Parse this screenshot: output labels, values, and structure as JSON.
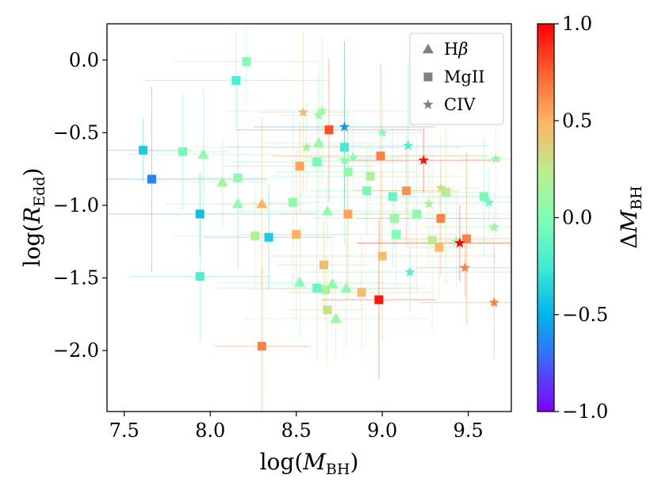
{
  "chart_data": {
    "type": "scatter",
    "xlabel": "log(M_BH)",
    "ylabel": "log(R_Edd)",
    "colorbar_label": "ΔM_BH",
    "xlim": [
      7.4,
      9.75
    ],
    "ylim": [
      -2.42,
      0.25
    ],
    "xticks": [
      7.5,
      8.0,
      8.5,
      9.0,
      9.5
    ],
    "xtick_labels": [
      "7.5",
      "8.0",
      "8.5",
      "9.0",
      "9.5"
    ],
    "yticks": [
      0.0,
      -0.5,
      -1.0,
      -1.5,
      -2.0
    ],
    "ytick_labels": [
      "0.0",
      "−0.5",
      "−1.0",
      "−1.5",
      "−2.0"
    ],
    "color_range": [
      -1.0,
      1.0
    ],
    "colorbar_ticks": [
      1.0,
      0.5,
      0.0,
      -0.5,
      -1.0
    ],
    "colorbar_tick_labels": [
      "1.0",
      "0.5",
      "0.0",
      "−0.5",
      "−1.0"
    ],
    "colormap": "rainbow",
    "grid": false,
    "legend": {
      "position": "top-right",
      "entries": [
        {
          "marker": "triangle",
          "label_main": "H",
          "label_sub": "β"
        },
        {
          "marker": "square",
          "label_main": "MgII",
          "label_sub": ""
        },
        {
          "marker": "star",
          "label_main": "CIV",
          "label_sub": ""
        }
      ]
    },
    "series": [
      {
        "marker": "triangle",
        "points": [
          {
            "x": 7.96,
            "y": -0.65,
            "c": 0.05
          },
          {
            "x": 8.07,
            "y": -0.84,
            "c": 0.15
          },
          {
            "x": 8.16,
            "y": -0.99,
            "c": 0.05
          },
          {
            "x": 8.3,
            "y": -0.99,
            "c": 0.5
          },
          {
            "x": 8.52,
            "y": -1.53,
            "c": 0.0
          },
          {
            "x": 8.63,
            "y": -0.57,
            "c": 0.1
          },
          {
            "x": 8.68,
            "y": -1.04,
            "c": 0.05
          },
          {
            "x": 8.71,
            "y": -1.54,
            "c": 0.05
          },
          {
            "x": 8.73,
            "y": -1.78,
            "c": 0.1
          },
          {
            "x": 8.79,
            "y": -1.57,
            "c": 0.05
          }
        ]
      },
      {
        "marker": "square",
        "points": [
          {
            "x": 7.61,
            "y": -0.62,
            "c": -0.4
          },
          {
            "x": 7.66,
            "y": -0.82,
            "c": -0.65
          },
          {
            "x": 7.84,
            "y": -0.63,
            "c": -0.05
          },
          {
            "x": 7.94,
            "y": -1.06,
            "c": -0.45
          },
          {
            "x": 7.94,
            "y": -1.49,
            "c": -0.2
          },
          {
            "x": 8.15,
            "y": -0.14,
            "c": -0.2
          },
          {
            "x": 8.16,
            "y": -0.81,
            "c": 0.05
          },
          {
            "x": 8.21,
            "y": -0.01,
            "c": 0.0
          },
          {
            "x": 8.26,
            "y": -1.21,
            "c": 0.2
          },
          {
            "x": 8.3,
            "y": -1.97,
            "c": 0.65
          },
          {
            "x": 8.34,
            "y": -1.22,
            "c": -0.4
          },
          {
            "x": 8.48,
            "y": -0.98,
            "c": 0.05
          },
          {
            "x": 8.5,
            "y": -1.2,
            "c": 0.5
          },
          {
            "x": 8.52,
            "y": -0.73,
            "c": 0.55
          },
          {
            "x": 8.62,
            "y": -0.7,
            "c": -0.05
          },
          {
            "x": 8.62,
            "y": -1.57,
            "c": -0.1
          },
          {
            "x": 8.66,
            "y": -1.41,
            "c": 0.45
          },
          {
            "x": 8.67,
            "y": -1.58,
            "c": 0.15
          },
          {
            "x": 8.68,
            "y": -1.72,
            "c": 0.3
          },
          {
            "x": 8.69,
            "y": -0.48,
            "c": 0.8
          },
          {
            "x": 8.78,
            "y": -0.6,
            "c": -0.25
          },
          {
            "x": 8.8,
            "y": -0.77,
            "c": 0.05
          },
          {
            "x": 8.8,
            "y": -1.06,
            "c": 0.55
          },
          {
            "x": 8.88,
            "y": -1.6,
            "c": 0.45
          },
          {
            "x": 8.91,
            "y": -0.9,
            "c": -0.05
          },
          {
            "x": 8.93,
            "y": -0.8,
            "c": 0.2
          },
          {
            "x": 8.98,
            "y": -1.65,
            "c": 0.95
          },
          {
            "x": 8.99,
            "y": -0.66,
            "c": 0.65
          },
          {
            "x": 9.0,
            "y": -1.35,
            "c": 0.45
          },
          {
            "x": 9.06,
            "y": -0.94,
            "c": -0.1
          },
          {
            "x": 9.07,
            "y": -1.09,
            "c": 0.1
          },
          {
            "x": 9.08,
            "y": -1.2,
            "c": 0.0
          },
          {
            "x": 9.14,
            "y": -0.9,
            "c": 0.6
          },
          {
            "x": 9.2,
            "y": -1.06,
            "c": 0.05
          },
          {
            "x": 9.29,
            "y": -1.24,
            "c": 0.25
          },
          {
            "x": 9.33,
            "y": -1.29,
            "c": 0.45
          },
          {
            "x": 9.34,
            "y": -1.09,
            "c": 0.65
          },
          {
            "x": 9.37,
            "y": -0.91,
            "c": 0.2
          },
          {
            "x": 9.49,
            "y": -1.23,
            "c": 0.65
          },
          {
            "x": 9.59,
            "y": -0.94,
            "c": -0.05
          }
        ]
      },
      {
        "marker": "star",
        "points": [
          {
            "x": 8.54,
            "y": -0.36,
            "c": 0.45
          },
          {
            "x": 8.56,
            "y": -0.6,
            "c": 0.15
          },
          {
            "x": 8.63,
            "y": -0.38,
            "c": 0.1
          },
          {
            "x": 8.65,
            "y": -0.35,
            "c": 0.1
          },
          {
            "x": 8.78,
            "y": -0.46,
            "c": -0.6
          },
          {
            "x": 8.78,
            "y": -0.69,
            "c": 0.0
          },
          {
            "x": 8.83,
            "y": -0.67,
            "c": 0.05
          },
          {
            "x": 9.0,
            "y": -0.5,
            "c": 0.05
          },
          {
            "x": 9.15,
            "y": -0.59,
            "c": -0.2
          },
          {
            "x": 9.16,
            "y": -1.46,
            "c": -0.2
          },
          {
            "x": 9.24,
            "y": -0.69,
            "c": 0.95
          },
          {
            "x": 9.27,
            "y": -0.99,
            "c": 0.2
          },
          {
            "x": 9.34,
            "y": -0.88,
            "c": 0.3
          },
          {
            "x": 9.43,
            "y": -1.25,
            "c": 0.1
          },
          {
            "x": 9.45,
            "y": -1.26,
            "c": 1.0
          },
          {
            "x": 9.48,
            "y": -1.43,
            "c": 0.65
          },
          {
            "x": 9.62,
            "y": -0.98,
            "c": -0.05
          },
          {
            "x": 9.65,
            "y": -1.15,
            "c": 0.1
          },
          {
            "x": 9.65,
            "y": -1.67,
            "c": 0.65
          },
          {
            "x": 9.66,
            "y": -0.68,
            "c": 0.1
          }
        ]
      }
    ]
  }
}
